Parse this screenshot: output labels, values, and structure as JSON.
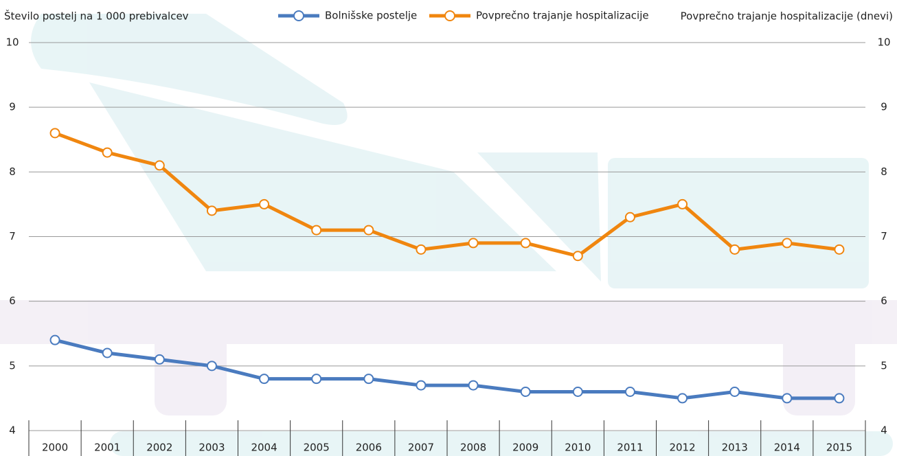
{
  "chart_data": {
    "type": "line",
    "y_axis_title": "Število postelj na 1 000 prebivalcev",
    "y2_axis_title": "Povprečno trajanje hospitalizacije (dnevi)",
    "categories": [
      "2000",
      "2001",
      "2002",
      "2003",
      "2004",
      "2005",
      "2006",
      "2007",
      "2008",
      "2009",
      "2010",
      "2011",
      "2012",
      "2013",
      "2014",
      "2015"
    ],
    "series": [
      {
        "name": "Bolnišske postelje",
        "color": "#4a7bbf",
        "values": [
          5.4,
          5.2,
          5.1,
          5.0,
          4.8,
          4.8,
          4.8,
          4.7,
          4.7,
          4.6,
          4.6,
          4.6,
          4.5,
          4.6,
          4.5,
          4.5
        ]
      },
      {
        "name": "Povprečno trajanje hospitalizacije",
        "color": "#f0860f",
        "axis": "y2",
        "values": [
          8.6,
          8.3,
          8.1,
          7.4,
          7.5,
          7.1,
          7.1,
          6.8,
          6.9,
          6.9,
          6.7,
          7.3,
          7.5,
          6.8,
          6.9,
          6.8
        ]
      }
    ],
    "ylim": [
      4,
      10
    ],
    "yticks": [
      4,
      5,
      6,
      7,
      8,
      9,
      10
    ],
    "y2lim": [
      4,
      10
    ],
    "y2ticks": [
      4,
      5,
      6,
      7,
      8,
      9,
      10
    ],
    "grid": true,
    "legend": "top"
  }
}
